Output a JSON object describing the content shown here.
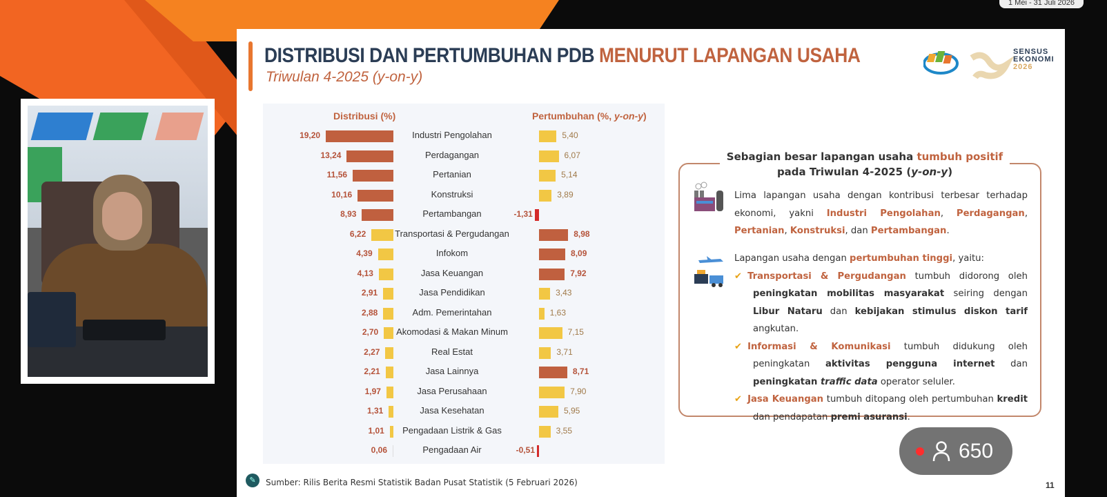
{
  "overlay": {
    "date_range": "1 Mei - 31 Juli 2026",
    "viewer_count": "650",
    "colors": {
      "live": "#ff2d2d"
    }
  },
  "slide": {
    "title_main": "DISTRIBUSI DAN PERTUMBUHAN PDB ",
    "title_accent": "MENURUT LAPANGAN USAHA",
    "subtitle": "Triwulan 4-2025 (y-on-y)",
    "logo": {
      "line1": "SENSUS",
      "line2": "EKONOMI",
      "line3": "2026"
    },
    "chart_data": {
      "type": "bar",
      "headers": {
        "distribution": "Distribusi (%)",
        "growth_prefix": "Pertumbuhan (%, ",
        "growth_italic": "y-on-y",
        "growth_suffix": ")"
      },
      "categories": [
        "Industri Pengolahan",
        "Perdagangan",
        "Pertanian",
        "Konstruksi",
        "Pertambangan",
        "Transportasi & Pergudangan",
        "Infokom",
        "Jasa Keuangan",
        "Jasa Pendidikan",
        "Adm. Pemerintahan",
        "Akomodasi & Makan Minum",
        "Real Estat",
        "Jasa Lainnya",
        "Jasa Perusahaan",
        "Jasa Kesehatan",
        "Pengadaan Listrik & Gas",
        "Pengadaan Air"
      ],
      "series": [
        {
          "name": "Distribusi (%)",
          "values": [
            19.2,
            13.24,
            11.56,
            10.16,
            8.93,
            6.22,
            4.39,
            4.13,
            2.91,
            2.88,
            2.7,
            2.27,
            2.21,
            1.97,
            1.31,
            1.01,
            0.06
          ],
          "labels": [
            "19,20",
            "13,24",
            "11,56",
            "10,16",
            "8,93",
            "6,22",
            "4,39",
            "4,13",
            "2,91",
            "2,88",
            "2,70",
            "2,27",
            "2,21",
            "1,97",
            "1,31",
            "1,01",
            "0,06"
          ]
        },
        {
          "name": "Pertumbuhan (%, y-on-y)",
          "values": [
            5.4,
            6.07,
            5.14,
            3.89,
            -1.31,
            8.98,
            8.09,
            7.92,
            3.43,
            1.63,
            7.15,
            3.71,
            8.71,
            7.9,
            5.95,
            3.55,
            -0.51
          ],
          "labels": [
            "5,40",
            "6,07",
            "5,14",
            "3,89",
            "-1,31",
            "8,98",
            "8,09",
            "7,92",
            "3,43",
            "1,63",
            "7,15",
            "3,71",
            "8,71",
            "7,90",
            "5,95",
            "3,55",
            "-0,51"
          ]
        }
      ],
      "colors": {
        "top": "#c0603f",
        "other": "#f2c744",
        "negative": "#d42a2a"
      }
    },
    "panel": {
      "heading_a": "Sebagian besar lapangan usaha ",
      "heading_b": "tumbuh positif",
      "heading_c": "pada Triwulan 4-2025 (",
      "heading_d": "y-on-y",
      "heading_e": ")",
      "p1": {
        "a": "Lima lapangan usaha dengan kontribusi terbesar terhadap ekonomi, yakni ",
        "b": "Industri Pengolahan",
        "c": ", ",
        "d": "Perdagangan",
        "e": ", ",
        "f": "Pertanian",
        "g": ", ",
        "h": "Konstruksi",
        "i": ", dan ",
        "j": "Pertambangan",
        "k": "."
      },
      "p2_intro_a": "Lapangan usaha dengan ",
      "p2_intro_b": "pertumbuhan tinggi",
      "p2_intro_c": ", yaitu:",
      "b1": {
        "a": "Transportasi & Pergudangan",
        "b": " tumbuh didorong oleh ",
        "c": "peningkatan mobilitas masyarakat",
        "d": " seiring dengan ",
        "e": "Libur Nataru",
        "f": " dan ",
        "g": "kebijakan stimulus diskon tarif",
        "h": " angkutan."
      },
      "b2": {
        "a": "Informasi & Komunikasi",
        "b": " tumbuh didukung oleh peningkatan ",
        "c": "aktivitas pengguna internet",
        "d": " dan ",
        "e": "peningkatan ",
        "f": "traffic data",
        "g": " operator seluler."
      },
      "b3": {
        "a": "Jasa Keuangan",
        "b": " tumbuh ditopang oleh pertumbuhan ",
        "c": "kredit",
        "d": " dan pendapatan ",
        "e": "premi asuransi",
        "f": "."
      }
    },
    "source": "Sumber: Rilis Berita Resmi Statistik Badan Pusat Statistik (5 Februari 2026)",
    "page_number": "11"
  }
}
